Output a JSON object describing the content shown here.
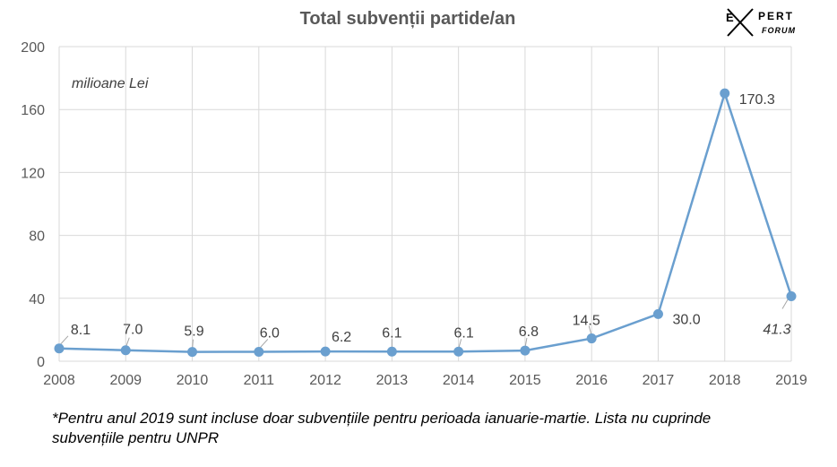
{
  "chart_data": {
    "type": "line",
    "title": "Total subvenții partide/an",
    "unit_label": "milioane Lei",
    "x": [
      "2008",
      "2009",
      "2010",
      "2011",
      "2012",
      "2013",
      "2014",
      "2015",
      "2016",
      "2017",
      "2018",
      "2019"
    ],
    "series": [
      {
        "values": [
          8.1,
          7.0,
          5.9,
          6.0,
          6.2,
          6.1,
          6.1,
          6.8,
          14.5,
          30.0,
          170.3,
          41.3
        ]
      }
    ],
    "data_labels": [
      "8.1",
      "7.0",
      "5.9",
      "6.0",
      "6.2",
      "6.1",
      "6.1",
      "6.8",
      "14.5",
      "30.0",
      "170.3",
      "41.3"
    ],
    "y_ticks": [
      0,
      40,
      80,
      120,
      160,
      200
    ],
    "ylim": [
      0,
      200
    ],
    "grid": true,
    "legend": "none",
    "colors": {
      "line": "#6a9fcf",
      "grid": "#d9d9d9",
      "text": "#595959"
    }
  },
  "footnote": "*Pentru anul 2019 sunt incluse doar subvențiile pentru perioada ianuarie-martie. Lista nu cuprinde subvențiile pentru UNPR",
  "logo": {
    "text": "EXPERT FORUM"
  }
}
